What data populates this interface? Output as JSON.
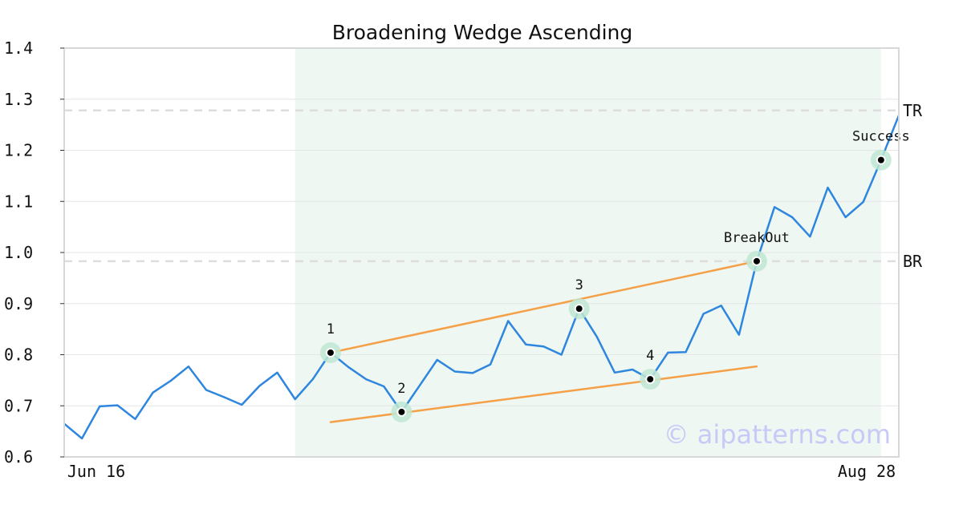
{
  "chart_data": {
    "type": "line",
    "title": "Broadening Wedge Ascending",
    "xlabel": "",
    "ylabel": "",
    "x_tick_labels": [
      "Jun 16",
      "Aug 28"
    ],
    "y_ticks": [
      "0.6",
      "0.7",
      "0.8",
      "0.9",
      "1.0",
      "1.1",
      "1.2",
      "1.3",
      "1.4"
    ],
    "ylim": [
      0.6,
      1.4
    ],
    "grid": true,
    "pattern_region": {
      "start_index": 13,
      "end_index": 46
    },
    "series": [
      {
        "color": "#2e86de",
        "values": [
          0.665,
          0.636,
          0.699,
          0.701,
          0.674,
          0.726,
          0.749,
          0.777,
          0.731,
          0.717,
          0.702,
          0.739,
          0.765,
          0.713,
          0.752,
          0.804,
          0.776,
          0.752,
          0.738,
          0.688,
          0.739,
          0.79,
          0.767,
          0.764,
          0.781,
          0.866,
          0.82,
          0.816,
          0.8,
          0.89,
          0.835,
          0.765,
          0.771,
          0.752,
          0.804,
          0.805,
          0.88,
          0.896,
          0.839,
          0.983,
          1.089,
          1.069,
          1.031,
          1.127,
          1.069,
          1.099,
          1.181,
          1.268
        ]
      }
    ],
    "trendlines": [
      {
        "name": "upper",
        "color": "#f5a047",
        "from": [
          15,
          0.804
        ],
        "to": [
          39,
          0.983
        ]
      },
      {
        "name": "lower",
        "color": "#f5a047",
        "from": [
          15,
          0.668
        ],
        "to": [
          39,
          0.777
        ]
      }
    ],
    "levels": [
      {
        "label": "TR",
        "value": 1.278
      },
      {
        "label": "BR",
        "value": 0.983
      }
    ],
    "points": [
      {
        "label": "1",
        "index": 15,
        "value": 0.804
      },
      {
        "label": "2",
        "index": 19,
        "value": 0.688
      },
      {
        "label": "3",
        "index": 29,
        "value": 0.89
      },
      {
        "label": "4",
        "index": 33,
        "value": 0.752
      },
      {
        "label": "BreakOut",
        "index": 39,
        "value": 0.983
      },
      {
        "label": "Success",
        "index": 46,
        "value": 1.181
      }
    ],
    "watermark": "© aipatterns.com"
  }
}
